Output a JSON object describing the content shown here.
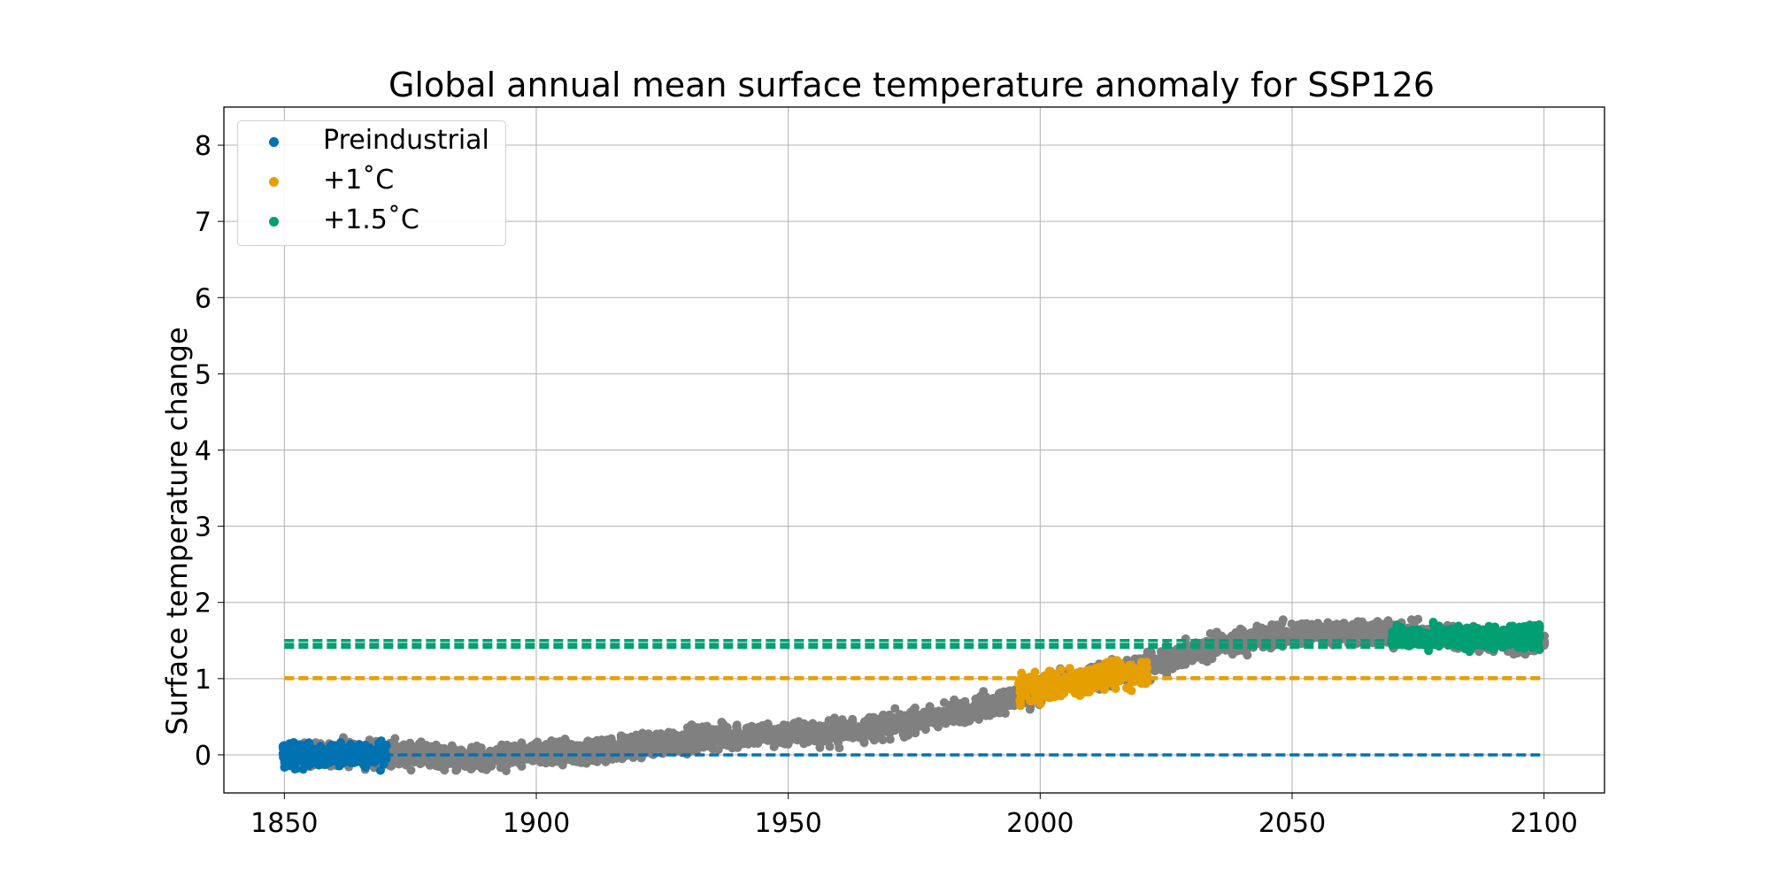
{
  "chart_data": {
    "type": "scatter",
    "title": "Global annual mean surface temperature anomaly for SSP126",
    "xlabel": "",
    "ylabel": "Surface temperature change",
    "xlim": [
      1838,
      2112
    ],
    "ylim": [
      -0.5,
      8.5
    ],
    "xticks": [
      1850,
      1900,
      1950,
      2000,
      2050,
      2100
    ],
    "yticks": [
      0,
      1,
      2,
      3,
      4,
      5,
      6,
      7,
      8
    ],
    "grid": true,
    "legend_position": "top-left",
    "colors": {
      "preindustrial": "#0072B2",
      "plus1": "#E69F00",
      "plus15": "#009E73",
      "other": "#808080",
      "grid": "#b0b0b0"
    },
    "series": [
      {
        "name": "Preindustrial",
        "color": "#0072B2",
        "x_range": [
          1850,
          1870
        ],
        "y_mean": 0.0,
        "y_spread": 0.12
      },
      {
        "name": "+1˚C",
        "color": "#E69F00",
        "x_range": [
          1996,
          2021
        ],
        "y_trend": [
          [
            1996,
            0.85
          ],
          [
            2021,
            1.1
          ]
        ],
        "y_spread": 0.15
      },
      {
        "name": "+1.5˚C",
        "color": "#009E73",
        "x_range": [
          2070,
          2099
        ],
        "y_mean": 1.55,
        "y_spread": 0.12
      }
    ],
    "background_series": {
      "color": "#808080",
      "trend": [
        [
          1850,
          0.0
        ],
        [
          1870,
          0.02
        ],
        [
          1885,
          -0.05
        ],
        [
          1900,
          0.0
        ],
        [
          1910,
          0.02
        ],
        [
          1920,
          0.12
        ],
        [
          1930,
          0.2
        ],
        [
          1940,
          0.25
        ],
        [
          1950,
          0.28
        ],
        [
          1960,
          0.3
        ],
        [
          1970,
          0.38
        ],
        [
          1980,
          0.5
        ],
        [
          1990,
          0.65
        ],
        [
          2000,
          0.85
        ],
        [
          2010,
          1.0
        ],
        [
          2020,
          1.15
        ],
        [
          2030,
          1.35
        ],
        [
          2040,
          1.5
        ],
        [
          2050,
          1.6
        ],
        [
          2060,
          1.62
        ],
        [
          2070,
          1.58
        ],
        [
          2080,
          1.55
        ],
        [
          2090,
          1.5
        ],
        [
          2100,
          1.45
        ]
      ],
      "spread": 0.13
    },
    "reference_lines": [
      {
        "label": "Preindustrial",
        "y": 0.0,
        "x_range": [
          1850,
          2100
        ],
        "color": "#0072B2",
        "style": "dashed"
      },
      {
        "label": "+1˚C",
        "y": 1.0,
        "x_range": [
          1850,
          2100
        ],
        "color": "#E69F00",
        "style": "dashed"
      },
      {
        "label": "+1.5˚C",
        "y": 1.5,
        "x_range": [
          1850,
          2100
        ],
        "color": "#009E73",
        "style": "dashed"
      }
    ]
  }
}
